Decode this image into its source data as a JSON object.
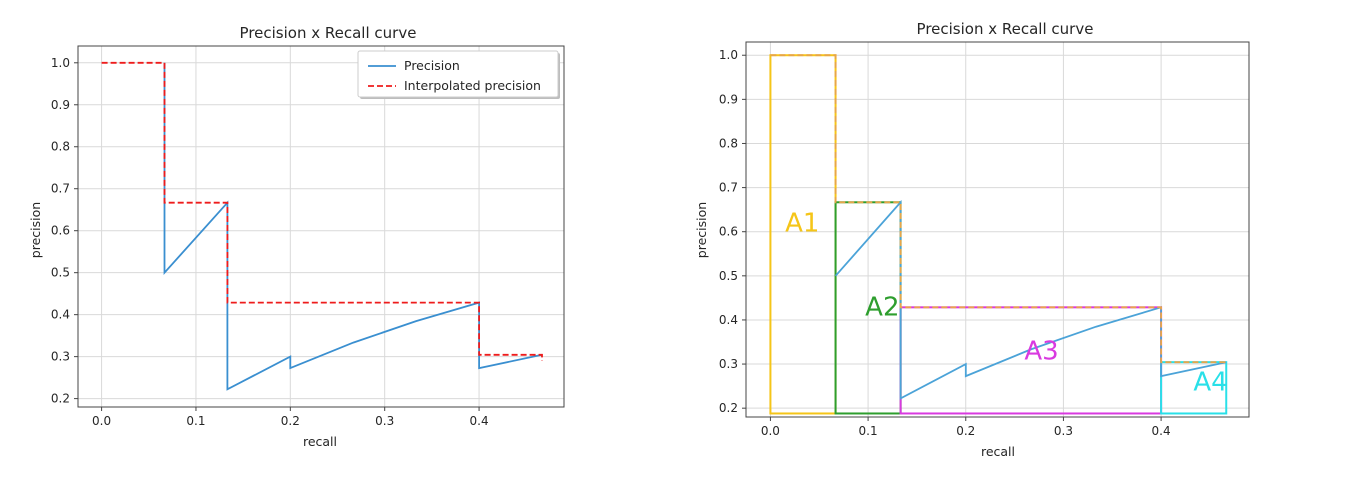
{
  "chart_data": [
    {
      "type": "line",
      "title": "Precision x Recall curve",
      "xlabel": "recall",
      "ylabel": "precision",
      "xlim": [
        -0.025,
        0.49
      ],
      "ylim": [
        0.18,
        1.04
      ],
      "xticks": [
        0.0,
        0.1,
        0.2,
        0.3,
        0.4
      ],
      "xtick_labels": [
        "0.0",
        "0.1",
        "0.2",
        "0.3",
        "0.4"
      ],
      "yticks": [
        0.2,
        0.3,
        0.4,
        0.5,
        0.6,
        0.7,
        0.8,
        0.9,
        1.0
      ],
      "ytick_labels": [
        "0.2",
        "0.3",
        "0.4",
        "0.5",
        "0.6",
        "0.7",
        "0.8",
        "0.9",
        "1.0"
      ],
      "grid": true,
      "legend_position": "top-right",
      "series": [
        {
          "name": "Precision",
          "color": "#3a8fd0",
          "style": "solid",
          "x": [
            0.0667,
            0.0667,
            0.1333,
            0.1333,
            0.2,
            0.2,
            0.2667,
            0.3333,
            0.4,
            0.4,
            0.4667
          ],
          "y": [
            1.0,
            0.5,
            0.6667,
            0.2222,
            0.3,
            0.2727,
            0.3333,
            0.3846,
            0.4286,
            0.2727,
            0.3043
          ]
        },
        {
          "name": "Interpolated precision",
          "color": "#ee1c1c",
          "style": "dashed",
          "x": [
            0.0,
            0.0667,
            0.0667,
            0.1333,
            0.1333,
            0.4,
            0.4,
            0.4667,
            0.4667
          ],
          "y": [
            1.0,
            1.0,
            0.6667,
            0.6667,
            0.4286,
            0.4286,
            0.3043,
            0.3043,
            0.29
          ]
        }
      ]
    },
    {
      "type": "line",
      "title": "Precision x Recall curve",
      "xlabel": "recall",
      "ylabel": "precision",
      "xlim": [
        -0.025,
        0.49
      ],
      "ylim": [
        0.18,
        1.03
      ],
      "xticks": [
        0.0,
        0.1,
        0.2,
        0.3,
        0.4
      ],
      "xtick_labels": [
        "0.0",
        "0.1",
        "0.2",
        "0.3",
        "0.4"
      ],
      "yticks": [
        0.2,
        0.3,
        0.4,
        0.5,
        0.6,
        0.7,
        0.8,
        0.9,
        1.0
      ],
      "ytick_labels": [
        "0.2",
        "0.3",
        "0.4",
        "0.5",
        "0.6",
        "0.7",
        "0.8",
        "0.9",
        "1.0"
      ],
      "grid": true,
      "series": [
        {
          "name": "Precision",
          "color": "#4ba3d8",
          "style": "solid",
          "x": [
            0.0667,
            0.1333,
            0.1333,
            0.2,
            0.2,
            0.2667,
            0.3333,
            0.4,
            0.4,
            0.4667
          ],
          "y": [
            0.5,
            0.6667,
            0.2222,
            0.3,
            0.2727,
            0.3333,
            0.3846,
            0.4286,
            0.2727,
            0.3043
          ]
        },
        {
          "name": "Interpolated precision",
          "color": "#e8a54a",
          "style": "dashed",
          "x": [
            0.0,
            0.0667,
            0.0667,
            0.1333,
            0.1333,
            0.4,
            0.4,
            0.4667
          ],
          "y": [
            1.0,
            1.0,
            0.6667,
            0.6667,
            0.4286,
            0.4286,
            0.3043,
            0.3043
          ]
        }
      ],
      "regions": [
        {
          "label": "A1",
          "x0": 0.0,
          "x1": 0.0667,
          "y0": 0.188,
          "y1": 1.0,
          "color": "#f5c518",
          "label_x": 0.015,
          "label_y": 0.6
        },
        {
          "label": "A2",
          "x0": 0.0667,
          "x1": 0.1333,
          "y0": 0.188,
          "y1": 0.6667,
          "color": "#2e9e2e",
          "label_x": 0.097,
          "label_y": 0.41
        },
        {
          "label": "A3",
          "x0": 0.1333,
          "x1": 0.4,
          "y0": 0.188,
          "y1": 0.4286,
          "color": "#d93ae0",
          "label_x": 0.26,
          "label_y": 0.31
        },
        {
          "label": "A4",
          "x0": 0.4,
          "x1": 0.4667,
          "y0": 0.188,
          "y1": 0.3043,
          "color": "#29e0e8",
          "label_x": 0.433,
          "label_y": 0.24
        }
      ]
    }
  ]
}
